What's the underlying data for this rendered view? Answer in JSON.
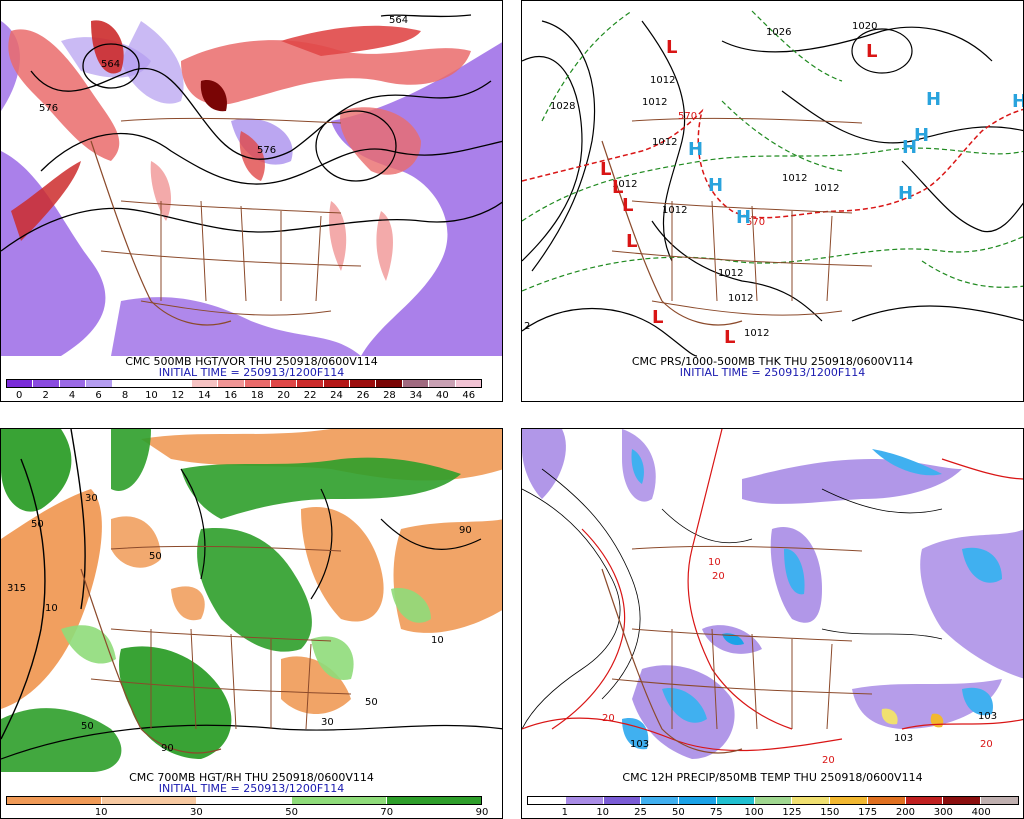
{
  "panels": {
    "vort": {
      "title": "CMC 500MB HGT/VOR THU 250918/0600V114",
      "subtitle": "INITIAL TIME = 250913/1200F114",
      "scale_labels": [
        "0",
        "2",
        "4",
        "6",
        "8",
        "10",
        "12",
        "14",
        "16",
        "18",
        "20",
        "22",
        "24",
        "26",
        "28",
        "34",
        "40",
        "46"
      ],
      "scale_colors": [
        "#7a2bd9",
        "#8a4be0",
        "#9b6ae6",
        "#b49cf0",
        "#ffffff",
        "#ffffff",
        "#ffffff",
        "#f6c2c2",
        "#f09595",
        "#ea6b6b",
        "#e04848",
        "#cc2b2b",
        "#b51717",
        "#9c0d0d",
        "#7a0505",
        "#a06a80",
        "#c9a0b3",
        "#f2c3d4"
      ],
      "map_labels": [
        "564",
        "576",
        "576",
        "564"
      ]
    },
    "mslp": {
      "title": "CMC PRS/1000-500MB THK THU 250918/0600V114",
      "subtitle": "INITIAL TIME = 250913/1200F114",
      "map_labels": [
        "1028",
        "1020",
        "1012",
        "1012",
        "1012",
        "1012",
        "1012",
        "1012",
        "1012",
        "1012",
        "570",
        "570",
        "1026"
      ],
      "highs": [
        "H",
        "H",
        "H",
        "H",
        "H",
        "H",
        "H",
        "H"
      ],
      "lows": [
        "L",
        "L",
        "L",
        "L",
        "L",
        "L",
        "L",
        "L",
        "L"
      ],
      "side_labels": [
        "2"
      ]
    },
    "rh": {
      "title": "CMC 700MB HGT/RH THU 250918/0600V114",
      "subtitle": "INITIAL TIME = 250913/1200F114",
      "scale_labels": [
        "10",
        "30",
        "50",
        "70",
        "90"
      ],
      "scale_colors": [
        "#f09a56",
        "#f7c9a1",
        "#ffffff",
        "#8fdc7a",
        "#2e9e2a"
      ],
      "map_labels": [
        "315",
        "10",
        "30",
        "50",
        "50",
        "90",
        "90",
        "50",
        "10",
        "50",
        "30"
      ]
    },
    "precip": {
      "title": "CMC 12H PRECIP/850MB TEMP THU 250918/0600V114",
      "scale_labels": [
        "1",
        "10",
        "25",
        "50",
        "75",
        "100",
        "125",
        "150",
        "175",
        "200",
        "300",
        "400"
      ],
      "scale_colors": [
        "#ffffff",
        "#a98ce6",
        "#7a5cd6",
        "#40b0f0",
        "#1aa3e8",
        "#20c0d0",
        "#a0d890",
        "#f0e070",
        "#f2b830",
        "#e07020",
        "#c02020",
        "#8b0f0f",
        "#c0b0b0"
      ],
      "map_labels": [
        "20",
        "20",
        "10",
        "103",
        "103",
        "103",
        "20",
        "20"
      ]
    }
  }
}
